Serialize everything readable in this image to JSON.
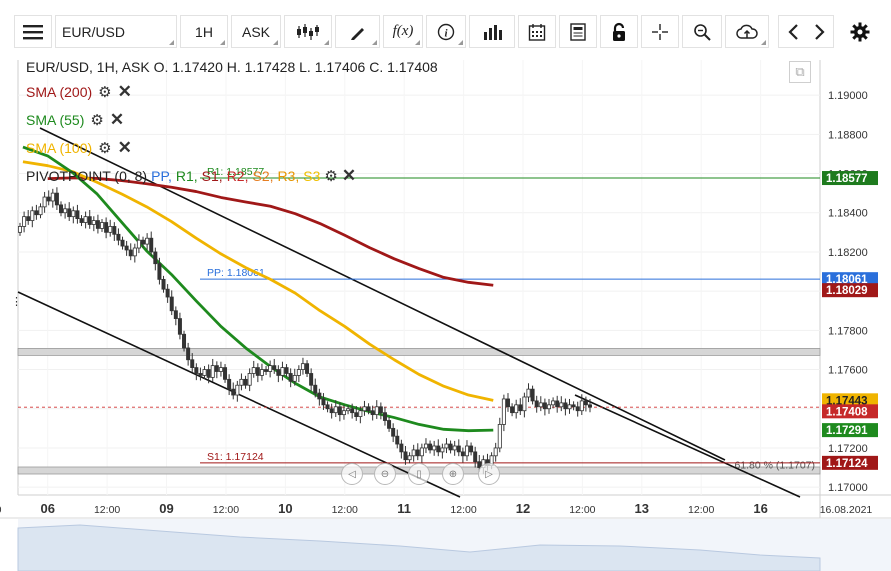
{
  "toolbar": {
    "symbol": "EUR/USD",
    "interval": "1H",
    "price_type": "ASK",
    "icons": [
      "menu-icon",
      "candles-icon",
      "draw-icon",
      "fx-icon",
      "info-icon",
      "volume-icon",
      "calendar-icon",
      "news-icon",
      "lock-icon",
      "crosshair-icon",
      "zoom-icon",
      "cloud-icon",
      "prev-icon",
      "next-icon",
      "settings-icon"
    ]
  },
  "legend": {
    "ohlc": "EUR/USD, 1H, ASK    O. 1.17420  H. 1.17428  L. 1.17406  C. 1.17408",
    "indicators": [
      {
        "label": "SMA (200)",
        "color": "#a01818"
      },
      {
        "label": "SMA (55)",
        "color": "#1e8a1e"
      },
      {
        "label": "SMA (100)",
        "color": "#f0b400"
      }
    ],
    "pivot": {
      "label": "PIVOTPOINT (0, 8)",
      "components": [
        {
          "text": "PP,",
          "color": "#2a6fdb"
        },
        {
          "text": "R1,",
          "color": "#1e8a1e"
        },
        {
          "text": "S1,",
          "color": "#a01818"
        },
        {
          "text": "R2,",
          "color": "#c62828"
        },
        {
          "text": "S2,",
          "color": "#e67e22"
        },
        {
          "text": "R3,",
          "color": "#e69500"
        },
        {
          "text": "S3",
          "color": "#f0c000"
        }
      ]
    }
  },
  "chart_data": {
    "type": "line",
    "title": "EUR/USD, 1H, ASK",
    "ohlc_last": {
      "open": 1.1742,
      "high": 1.17428,
      "low": 1.17406,
      "close": 1.17408
    },
    "ylim": [
      1.1696,
      1.1922
    ],
    "y_ticks": [
      "1.19000",
      "1.18800",
      "1.18600",
      "1.18400",
      "1.18200",
      "1.18000",
      "1.17800",
      "1.17600",
      "1.17400",
      "1.17200",
      "1.17000"
    ],
    "y_tick_values": [
      1.19,
      1.188,
      1.186,
      1.184,
      1.182,
      1.18,
      1.178,
      1.176,
      1.174,
      1.172,
      1.17
    ],
    "x_ticks": [
      "12:00",
      "06",
      "12:00",
      "09",
      "12:00",
      "10",
      "12:00",
      "11",
      "12:00",
      "12",
      "12:00",
      "13",
      "12:00",
      "16",
      "16.08.2021"
    ],
    "x_range_hours": [
      -12,
      312
    ],
    "x_tick_hours": [
      -6,
      0,
      6,
      12,
      18,
      24,
      30,
      36,
      42,
      48,
      54,
      60,
      66,
      72,
      78
    ],
    "series": [
      {
        "name": "SMA (200)",
        "color": "#a01818",
        "x": [
          0,
          10,
          20,
          30,
          40,
          50,
          60,
          70,
          80,
          90,
          100,
          110,
          120,
          130,
          140,
          150,
          160,
          170,
          180
        ],
        "y": [
          1.18574,
          1.18578,
          1.18575,
          1.18564,
          1.18548,
          1.1853,
          1.18508,
          1.18478,
          1.18455,
          1.18433,
          1.18395,
          1.18345,
          1.18285,
          1.18222,
          1.18165,
          1.18115,
          1.1807,
          1.18045,
          1.1803
        ]
      },
      {
        "name": "SMA (100)",
        "color": "#f0b400",
        "x": [
          -10,
          0,
          10,
          20,
          30,
          40,
          50,
          60,
          70,
          80,
          90,
          100,
          110,
          120,
          130,
          140,
          150,
          160,
          170,
          180
        ],
        "y": [
          1.1866,
          1.1864,
          1.1861,
          1.18555,
          1.18495,
          1.1843,
          1.18355,
          1.1827,
          1.1819,
          1.1812,
          1.1806,
          1.1799,
          1.179,
          1.1782,
          1.1773,
          1.1765,
          1.17575,
          1.17515,
          1.1747,
          1.17443
        ]
      },
      {
        "name": "SMA (55)",
        "color": "#1e8a1e",
        "x": [
          -10,
          0,
          10,
          20,
          30,
          40,
          50,
          60,
          70,
          80,
          90,
          100,
          110,
          120,
          130,
          140,
          150,
          160,
          170,
          180
        ],
        "y": [
          1.18735,
          1.1869,
          1.18605,
          1.18495,
          1.1835,
          1.18205,
          1.18085,
          1.1795,
          1.1782,
          1.1771,
          1.17615,
          1.1753,
          1.1746,
          1.1742,
          1.17385,
          1.17355,
          1.1732,
          1.17295,
          1.17288,
          1.17291
        ]
      }
    ],
    "candles_close": [
      1.1833,
      1.1838,
      1.1836,
      1.1841,
      1.1839,
      1.1843,
      1.1848,
      1.1846,
      1.185,
      1.1844,
      1.184,
      1.1842,
      1.1838,
      1.1841,
      1.1837,
      1.1835,
      1.1838,
      1.1834,
      1.1836,
      1.1832,
      1.1835,
      1.183,
      1.1833,
      1.1829,
      1.1826,
      1.1823,
      1.1821,
      1.1818,
      1.1822,
      1.1826,
      1.1824,
      1.1827,
      1.182,
      1.1814,
      1.1806,
      1.1801,
      1.1797,
      1.179,
      1.1786,
      1.1778,
      1.1771,
      1.1765,
      1.1761,
      1.1758,
      1.1757,
      1.176,
      1.1756,
      1.1762,
      1.1759,
      1.1761,
      1.1755,
      1.175,
      1.1747,
      1.1752,
      1.1755,
      1.1752,
      1.1758,
      1.1761,
      1.1757,
      1.176,
      1.1759,
      1.1762,
      1.176,
      1.1757,
      1.1761,
      1.1758,
      1.1754,
      1.1757,
      1.176,
      1.1763,
      1.1758,
      1.1752,
      1.1748,
      1.1745,
      1.1742,
      1.174,
      1.1738,
      1.1741,
      1.1737,
      1.1739,
      1.174,
      1.1738,
      1.1736,
      1.1739,
      1.1741,
      1.1739,
      1.1737,
      1.1741,
      1.1738,
      1.1734,
      1.173,
      1.1726,
      1.1722,
      1.1718,
      1.1714,
      1.1716,
      1.1719,
      1.1716,
      1.172,
      1.1722,
      1.1719,
      1.1721,
      1.1718,
      1.172,
      1.1722,
      1.1719,
      1.1721,
      1.1718,
      1.1716,
      1.1721,
      1.1718,
      1.1713,
      1.171,
      1.1714,
      1.1711,
      1.1716,
      1.172,
      1.1732,
      1.1745,
      1.1741,
      1.1738,
      1.1742,
      1.1739,
      1.1746,
      1.175,
      1.1744,
      1.1741,
      1.1743,
      1.174,
      1.1742,
      1.1744,
      1.1741,
      1.1743,
      1.174,
      1.1742,
      1.1741,
      1.1739,
      1.1744,
      1.1742,
      1.17408
    ],
    "pivot_levels": [
      {
        "name": "R1",
        "label": "R1: 1.18577",
        "value": 1.18577,
        "color": "#1e8a1e"
      },
      {
        "name": "PP",
        "label": "PP: 1.18061",
        "value": 1.18061,
        "color": "#2a6fdb"
      },
      {
        "name": "S1",
        "label": "S1: 1.17124",
        "value": 1.17124,
        "color": "#a01818"
      }
    ],
    "horizontal_zones": [
      1.1769,
      1.17085
    ],
    "fib_label": "61.80 % (1.1707)",
    "price_labels": [
      {
        "text": "1.18577",
        "bg": "#1e7b1e",
        "fg": "#ffffff",
        "y": 1.18577
      },
      {
        "text": "1.18061",
        "bg": "#2a6fdb",
        "fg": "#ffffff",
        "y": 1.18061
      },
      {
        "text": "1.18029",
        "bg": "#a01818",
        "fg": "#ffffff",
        "y": 1.18029
      },
      {
        "text": "1.17443",
        "bg": "#f0b400",
        "fg": "#222222",
        "y": 1.17443
      },
      {
        "text": "1.17408",
        "bg": "#c62828",
        "fg": "#ffffff",
        "y": 1.17408
      },
      {
        "text": "1.17291",
        "bg": "#1e8a1e",
        "fg": "#ffffff",
        "y": 1.17291
      },
      {
        "text": "1.17124",
        "bg": "#a01818",
        "fg": "#ffffff",
        "y": 1.17124
      }
    ],
    "last_price": 1.17408,
    "grid": true
  }
}
